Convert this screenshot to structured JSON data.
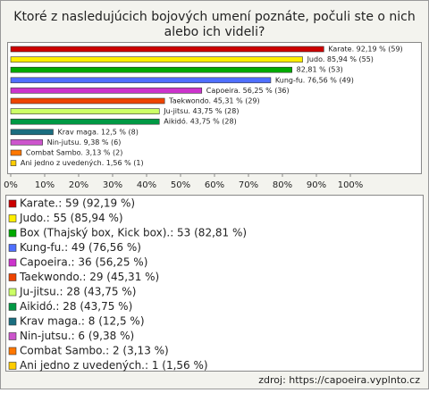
{
  "chart_data": {
    "type": "hbar",
    "title": [
      "Ktoré z nasledujúcich bojových umení poznáte, počuli ste o nich",
      "alebo ich videli?"
    ],
    "categories": [
      "Karate.",
      "Judo.",
      "Box (Thajský box, Kick box).",
      "Kung-fu.",
      "Capoeira.",
      "Taekwondo.",
      "Ju-jitsu.",
      "Aikidó.",
      "Krav maga.",
      "Nin-jutsu.",
      "Combat Sambo.",
      "Ani jedno z uvedených."
    ],
    "values": [
      92.19,
      85.94,
      82.81,
      76.56,
      56.25,
      45.31,
      43.75,
      43.75,
      12.5,
      9.38,
      3.13,
      1.56
    ],
    "value_labels": [
      "Karate. 92,19 % (59)",
      "Judo. 85,94 % (55)",
      "82,81 % (53)",
      "Kung-fu. 76,56 % (49)",
      "Capoeira. 56,25 % (36)",
      "Taekwondo. 45,31 % (29)",
      "Ju-jitsu. 43,75 % (28)",
      "Aikidó. 43,75 % (28)",
      "Krav maga. 12,5 % (8)",
      "Nin-jutsu. 9,38 % (6)",
      "Combat Sambo. 3,13 % (2)",
      "Ani jedno z uvedených. 1,56 % (1)"
    ],
    "legend": [
      "Karate.: 59 (92,19 %)",
      "Judo.: 55 (85,94 %)",
      "Box (Thajský box, Kick box).: 53 (82,81 %)",
      "Kung-fu.: 49 (76,56 %)",
      "Capoeira.: 36 (56,25 %)",
      "Taekwondo.: 29 (45,31 %)",
      "Ju-jitsu.: 28 (43,75 %)",
      "Aikidó.: 28 (43,75 %)",
      "Krav maga.: 8 (12,5 %)",
      "Nin-jutsu.: 6 (9,38 %)",
      "Combat Sambo.: 2 (3,13 %)",
      "Ani jedno z uvedených.: 1 (1,56 %)"
    ],
    "colors": [
      "#cc0000",
      "#ffee00",
      "#00aa00",
      "#4f6fff",
      "#cc33cc",
      "#ee4400",
      "#ccff66",
      "#009944",
      "#1a6e80",
      "#cc55cc",
      "#ff7700",
      "#ffcc00"
    ],
    "xlim": [
      0,
      100
    ],
    "xticks": [
      {
        "value": 0,
        "label": "0%"
      },
      {
        "value": 10,
        "label": "10%"
      },
      {
        "value": 20,
        "label": "20%"
      },
      {
        "value": 30,
        "label": "30%"
      },
      {
        "value": 40,
        "label": "40%"
      },
      {
        "value": 50,
        "label": "50%"
      },
      {
        "value": 60,
        "label": "60%"
      },
      {
        "value": 70,
        "label": "70%"
      },
      {
        "value": 80,
        "label": "80%"
      },
      {
        "value": 90,
        "label": "90%"
      },
      {
        "value": 100,
        "label": "100%"
      }
    ],
    "source": "zdroj: https://capoeira.vyplnto.cz"
  }
}
